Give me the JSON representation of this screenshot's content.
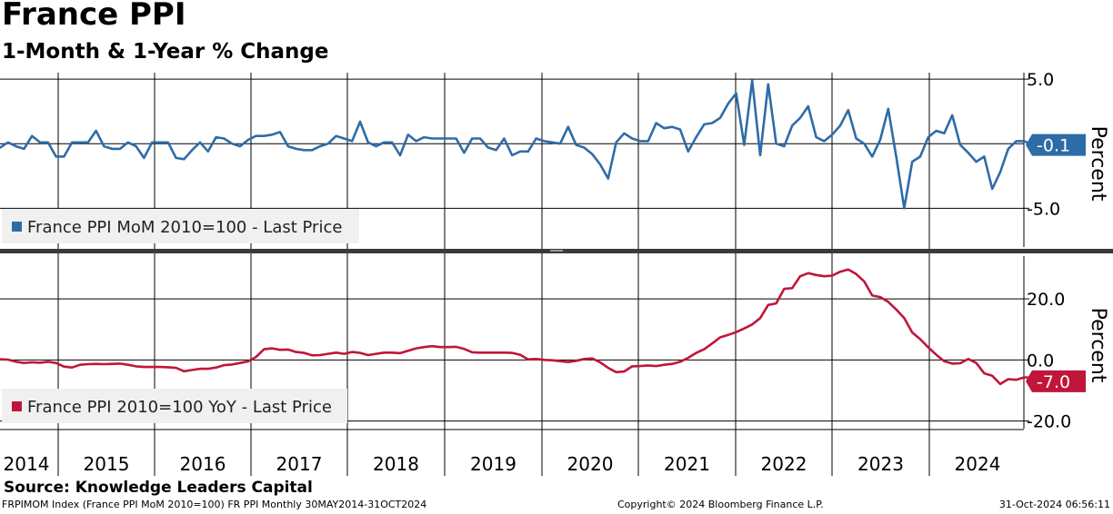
{
  "header": {
    "title": "France PPI",
    "subtitle": "1-Month & 1-Year % Change"
  },
  "footer": {
    "source": "Source:  Knowledge Leaders Capital",
    "index_info": "FRPIMOM Index (France PPI MoM 2010=100) FR PPI  Monthly 30MAY2014-31OCT2024",
    "copyright": "Copyright© 2024 Bloomberg Finance L.P.",
    "timestamp": "31-Oct-2024 06:56:11"
  },
  "colors": {
    "mom_series": "#2e6ca8",
    "yoy_series": "#c0163a",
    "grid": "#000000"
  },
  "chart_data": [
    {
      "type": "line",
      "panel": "top",
      "ylabel": "Percent",
      "ylim": [
        -8.0,
        5.5
      ],
      "yticks": [
        5.0,
        -5.0
      ],
      "ytick_labels": [
        "5.0",
        "-5.0"
      ],
      "last_value_label": "-0.1",
      "legend": "France PPI MoM 2010=100 - Last Price",
      "legend_position": "bottom-left",
      "x_start": "2014-05",
      "x_step": "monthly",
      "series": [
        {
          "name": "France PPI MoM 2010=100 - Last Price",
          "values": [
            -0.3,
            0.1,
            -0.2,
            -0.4,
            0.6,
            0.1,
            0.1,
            -1.0,
            -1.0,
            0.1,
            0.1,
            0.1,
            1.0,
            -0.2,
            -0.4,
            -0.4,
            0.1,
            -0.2,
            -1.1,
            0.1,
            0.1,
            0.1,
            -1.1,
            -1.2,
            -0.5,
            0.1,
            -0.6,
            0.5,
            0.4,
            0.0,
            -0.2,
            0.3,
            0.6,
            0.6,
            0.7,
            0.9,
            -0.2,
            -0.4,
            -0.5,
            -0.5,
            -0.2,
            0.0,
            0.6,
            0.4,
            0.2,
            1.7,
            0.1,
            -0.2,
            0.1,
            0.1,
            -0.9,
            0.7,
            0.2,
            0.5,
            0.4,
            0.4,
            0.4,
            0.4,
            -0.7,
            0.4,
            0.4,
            -0.3,
            -0.5,
            0.4,
            -0.9,
            -0.6,
            -0.6,
            0.4,
            0.2,
            0.1,
            0.0,
            1.3,
            -0.1,
            -0.3,
            -0.8,
            -1.6,
            -2.7,
            0.1,
            0.8,
            0.4,
            0.2,
            0.2,
            1.6,
            1.2,
            1.3,
            1.1,
            -0.6,
            0.5,
            1.5,
            1.6,
            2.0,
            3.1,
            3.9,
            -0.1,
            4.9,
            -0.9,
            4.6,
            0.0,
            -0.2,
            1.4,
            2.0,
            2.9,
            0.5,
            0.2,
            0.7,
            1.4,
            2.6,
            0.4,
            0.0,
            -1.0,
            0.3,
            2.7,
            -1.0,
            -5.0,
            -1.4,
            -1.0,
            0.5,
            1.0,
            0.8,
            2.2,
            -0.1,
            -0.7,
            -1.4,
            -1.0,
            -3.5,
            -2.2,
            -0.4,
            0.2,
            0.2,
            -0.1
          ]
        }
      ]
    },
    {
      "type": "line",
      "panel": "bottom",
      "ylabel": "Percent",
      "ylim": [
        -22.5,
        34.0
      ],
      "yticks": [
        20.0,
        0.0,
        -20.0
      ],
      "ytick_labels": [
        "20.0",
        "0.0",
        "-20.0"
      ],
      "last_value_label": "-7.0",
      "legend": "France PPI 2010=100 YoY - Last Price",
      "legend_position": "bottom-left",
      "x_start": "2014-05",
      "x_step": "monthly",
      "series": [
        {
          "name": "France PPI 2010=100 YoY - Last Price",
          "values": [
            0.2,
            0.1,
            -0.6,
            -1.0,
            -0.8,
            -0.9,
            -0.6,
            -1.0,
            -2.2,
            -2.5,
            -1.6,
            -1.4,
            -1.3,
            -1.4,
            -1.3,
            -1.2,
            -1.6,
            -2.1,
            -2.3,
            -2.3,
            -2.3,
            -2.4,
            -2.6,
            -3.7,
            -3.3,
            -2.9,
            -2.9,
            -2.5,
            -1.7,
            -1.5,
            -1.0,
            -0.5,
            1.0,
            3.5,
            3.8,
            3.3,
            3.4,
            2.6,
            2.3,
            1.5,
            1.6,
            2.0,
            2.4,
            2.0,
            2.6,
            2.3,
            1.6,
            2.0,
            2.4,
            2.4,
            2.2,
            3.0,
            3.8,
            4.2,
            4.5,
            4.2,
            4.2,
            4.3,
            3.6,
            2.5,
            2.4,
            2.4,
            2.4,
            2.4,
            2.3,
            1.7,
            0.2,
            0.3,
            0.0,
            -0.1,
            -0.4,
            -0.7,
            -0.3,
            0.3,
            0.5,
            -0.8,
            -2.6,
            -4.0,
            -3.8,
            -2.1,
            -2.0,
            -1.8,
            -2.0,
            -1.6,
            -1.3,
            -0.6,
            0.7,
            2.3,
            3.5,
            5.4,
            7.4,
            8.2,
            9.1,
            10.3,
            11.6,
            13.7,
            18.0,
            18.5,
            23.3,
            23.5,
            27.4,
            28.4,
            27.8,
            27.4,
            27.6,
            28.9,
            29.6,
            28.1,
            25.7,
            21.1,
            20.6,
            19.0,
            16.5,
            13.7,
            9.0,
            6.8,
            4.1,
            1.7,
            -0.4,
            -1.2,
            -1.1,
            0.3,
            -1.0,
            -4.4,
            -5.2,
            -7.9,
            -6.3,
            -6.5,
            -5.7,
            -5.8,
            -7.0
          ]
        }
      ]
    },
    {
      "type": "axis",
      "x_tick_labels": [
        "2014",
        "2015",
        "2016",
        "2017",
        "2018",
        "2019",
        "2020",
        "2021",
        "2022",
        "2023",
        "2024"
      ]
    }
  ]
}
